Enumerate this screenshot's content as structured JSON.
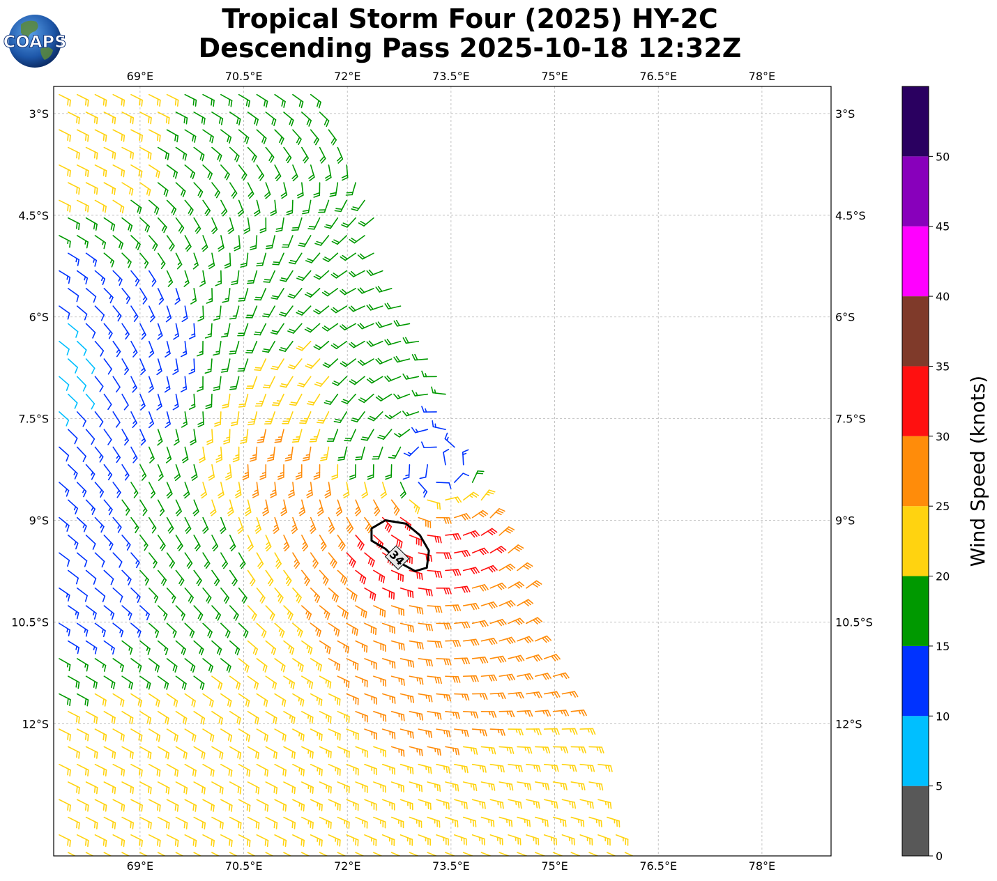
{
  "title": {
    "line1": "Tropical Storm Four (2025) HY-2C",
    "line2": "Descending Pass 2025-10-18 12:32Z"
  },
  "logo": {
    "text": "COAPS",
    "icon": "globe-icon"
  },
  "map": {
    "lon_range": [
      67.75,
      79.0
    ],
    "lat_range": [
      -13.95,
      -2.6
    ],
    "lon_ticks": [
      69,
      70.5,
      72,
      73.5,
      75,
      76.5,
      78
    ],
    "lon_tick_labels": [
      "69°E",
      "70.5°E",
      "72°E",
      "73.5°E",
      "75°E",
      "76.5°E",
      "78°E"
    ],
    "lat_ticks": [
      -3,
      -4.5,
      -6,
      -7.5,
      -9,
      -10.5,
      -12
    ],
    "lat_tick_labels": [
      "3°S",
      "4.5°S",
      "6°S",
      "7.5°S",
      "9°S",
      "10.5°S",
      "12°S"
    ],
    "grid": true,
    "storm_center": {
      "lon": 73.3,
      "lat": -8.2
    },
    "contour": {
      "label": "34",
      "points": [
        [
          72.35,
          -9.12
        ],
        [
          72.55,
          -9.0
        ],
        [
          72.85,
          -9.05
        ],
        [
          73.05,
          -9.22
        ],
        [
          73.18,
          -9.45
        ],
        [
          73.15,
          -9.7
        ],
        [
          72.98,
          -9.75
        ],
        [
          72.75,
          -9.62
        ],
        [
          72.55,
          -9.42
        ],
        [
          72.35,
          -9.3
        ]
      ]
    }
  },
  "colorbar": {
    "label": "Wind Speed (knots)",
    "bounds": [
      0,
      5,
      10,
      15,
      20,
      25,
      30,
      35,
      40,
      45,
      50,
      55
    ],
    "tick_labels": [
      "0",
      "5",
      "10",
      "15",
      "20",
      "25",
      "30",
      "35",
      "40",
      "45",
      "50"
    ],
    "colors": [
      "#585858",
      "#00bfff",
      "#0033ff",
      "#009900",
      "#ffd310",
      "#ff8c0a",
      "#ff1010",
      "#7f3a2a",
      "#ff00ff",
      "#8800bb",
      "#2a0060"
    ]
  },
  "chart_data": {
    "type": "wind_barbs",
    "variable": "Wind Speed (knots)",
    "swath_polygon": [
      [
        67.75,
        -2.6
      ],
      [
        71.6,
        -2.6
      ],
      [
        76.2,
        -13.95
      ],
      [
        67.75,
        -13.95
      ]
    ],
    "vortex_center": {
      "lon": 73.3,
      "lat": -8.2
    },
    "speed_samples": [
      {
        "lon": 68.5,
        "lat": -3.5,
        "speed": 22
      },
      {
        "lon": 69.8,
        "lat": -4.0,
        "speed": 18
      },
      {
        "lon": 68.6,
        "lat": -6.4,
        "speed": 13
      },
      {
        "lon": 67.9,
        "lat": -6.6,
        "speed": 8
      },
      {
        "lon": 68.4,
        "lat": -9.7,
        "speed": 12
      },
      {
        "lon": 69.5,
        "lat": -9.5,
        "speed": 18
      },
      {
        "lon": 71.2,
        "lat": -8.3,
        "speed": 27
      },
      {
        "lon": 72.6,
        "lat": -9.3,
        "speed": 32
      },
      {
        "lon": 73.6,
        "lat": -9.5,
        "speed": 31
      },
      {
        "lon": 73.2,
        "lat": -8.0,
        "speed": 13
      },
      {
        "lon": 72.4,
        "lat": -7.9,
        "speed": 18
      },
      {
        "lon": 74.3,
        "lat": -10.6,
        "speed": 28
      },
      {
        "lon": 69.0,
        "lat": -12.5,
        "speed": 22
      },
      {
        "lon": 74.8,
        "lat": -13.2,
        "speed": 23
      }
    ]
  }
}
